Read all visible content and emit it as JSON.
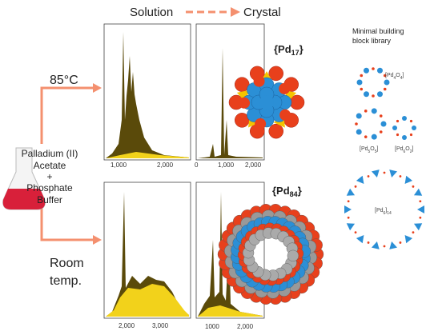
{
  "header": {
    "solution": "Solution",
    "crystal": "Crystal"
  },
  "conditions": {
    "hot": "85°C",
    "room": [
      "Room",
      "temp."
    ]
  },
  "reagents": [
    "Palladium (II)",
    "Acetate",
    "+",
    "Phosphate",
    "Buffer"
  ],
  "panels": [
    {
      "ticks": [
        "1,000",
        "2,000"
      ]
    },
    {
      "ticks": [
        "0",
        "1,000",
        "2,000"
      ]
    },
    {
      "ticks": [
        "2,000",
        "3,000"
      ]
    },
    {
      "ticks": [
        "1000",
        "2,000"
      ]
    }
  ],
  "clusters": [
    {
      "prefix": "{Pd",
      "sub": "17",
      "suffix": "}"
    },
    {
      "prefix": "{Pd",
      "sub": "84",
      "suffix": "}"
    }
  ],
  "library": {
    "title": [
      "Minimal building",
      "block library"
    ],
    "blocks": [
      [
        {
          "t": "[Pd"
        },
        {
          "s": "4"
        },
        {
          "t": "O"
        },
        {
          "s": "4"
        },
        {
          "t": "]"
        }
      ],
      [
        {
          "t": "[Pd"
        },
        {
          "s": "5"
        },
        {
          "t": "O"
        },
        {
          "s": "5"
        },
        {
          "t": "]"
        }
      ],
      [
        {
          "t": "[Pd"
        },
        {
          "s": "6"
        },
        {
          "t": "O"
        },
        {
          "s": "2"
        },
        {
          "t": "]"
        }
      ],
      [
        {
          "t": "[Pd"
        },
        {
          "s": "6"
        },
        {
          "t": "]"
        },
        {
          "s": "14"
        }
      ]
    ]
  }
}
